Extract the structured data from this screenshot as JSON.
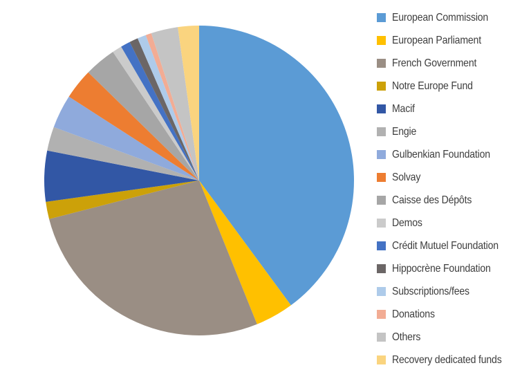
{
  "background_color": "#ffffff",
  "text_color": "#3d3d3d",
  "chart_data": {
    "type": "pie",
    "title": "",
    "legend_position": "right",
    "start_angle_deg": 0,
    "direction": "clockwise",
    "series": [
      {
        "label": "European Commission",
        "value_pct": 39.9,
        "color": "#5B9BD5"
      },
      {
        "label": "European Parliament",
        "value_pct": 4.0,
        "color": "#FFC000"
      },
      {
        "label": "French Government",
        "value_pct": 27.1,
        "color": "#9A8E84"
      },
      {
        "label": "Notre Europe Fund",
        "value_pct": 1.8,
        "color": "#CCA109"
      },
      {
        "label": "Macif",
        "value_pct": 5.3,
        "color": "#3257A5"
      },
      {
        "label": "Engie",
        "value_pct": 2.5,
        "color": "#B1B1B1"
      },
      {
        "label": "Gulbenkian Foundation",
        "value_pct": 3.5,
        "color": "#8FAADC"
      },
      {
        "label": "Solvay",
        "value_pct": 3.2,
        "color": "#ED7D31"
      },
      {
        "label": "Caisse des Dépôts",
        "value_pct": 3.3,
        "color": "#A6A6A6"
      },
      {
        "label": "Demos",
        "value_pct": 1.0,
        "color": "#CBCBCB"
      },
      {
        "label": "Crédit Mutuel Foundation",
        "value_pct": 1.0,
        "color": "#4472C4"
      },
      {
        "label": "Hippocrène Foundation",
        "value_pct": 0.9,
        "color": "#6B6666"
      },
      {
        "label": "Subscriptions/fees",
        "value_pct": 0.9,
        "color": "#AECBEA"
      },
      {
        "label": "Donations",
        "value_pct": 0.6,
        "color": "#F2AC94"
      },
      {
        "label": "Others",
        "value_pct": 2.8,
        "color": "#C4C4C4"
      },
      {
        "label": "Recovery dedicated funds",
        "value_pct": 2.2,
        "color": "#FAD47F"
      }
    ],
    "geometry": {
      "center_x": 288,
      "center_y": 261,
      "radius": 224
    }
  }
}
